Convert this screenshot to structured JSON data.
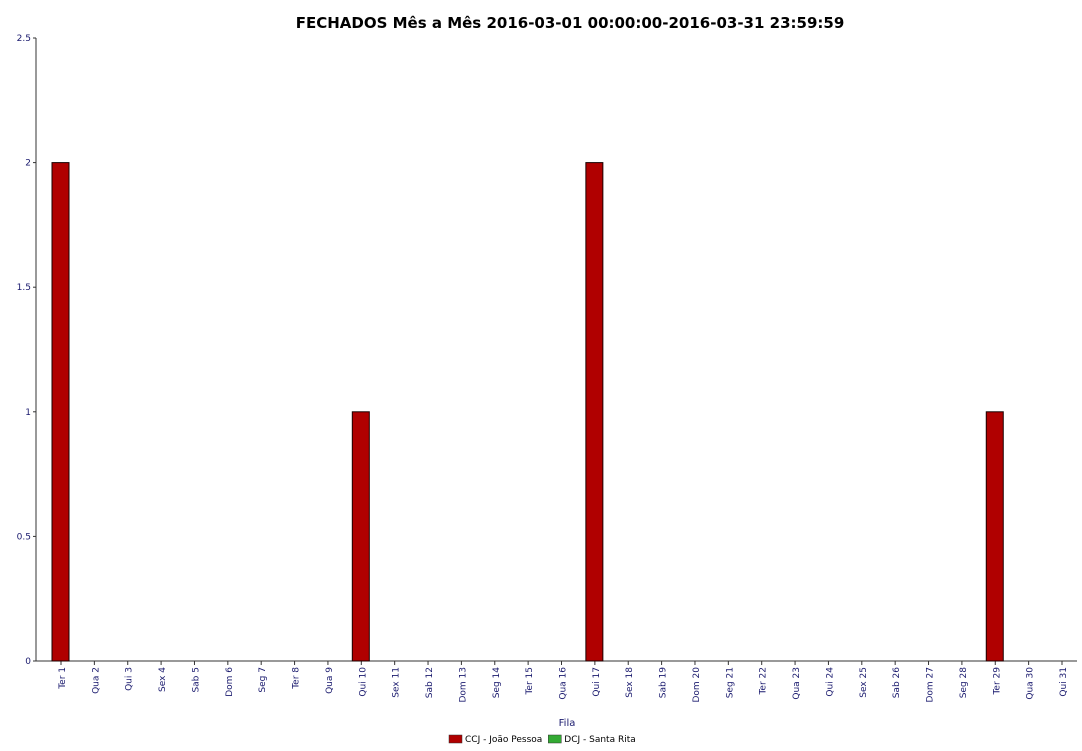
{
  "chart_data": {
    "type": "bar",
    "title": "FECHADOS Mês a Mês 2016-03-01 00:00:00-2016-03-31 23:59:59",
    "xlabel": "Fila",
    "ylabel": "",
    "ylim": [
      0,
      2.5
    ],
    "yticks": [
      "0",
      "0.5",
      "1",
      "1.5",
      "2",
      "2.5"
    ],
    "grid": false,
    "legend_position": "bottom-center",
    "categories": [
      "Ter 1",
      "Qua 2",
      "Qui 3",
      "Sex 4",
      "Sab 5",
      "Dom 6",
      "Seg 7",
      "Ter 8",
      "Qua 9",
      "Qui 10",
      "Sex 11",
      "Sab 12",
      "Dom 13",
      "Seg 14",
      "Ter 15",
      "Qua 16",
      "Qui 17",
      "Sex 18",
      "Sab 19",
      "Dom 20",
      "Seg 21",
      "Ter 22",
      "Qua 23",
      "Qui 24",
      "Sex 25",
      "Sab 26",
      "Dom 27",
      "Seg 28",
      "Ter 29",
      "Qua 30",
      "Qui 31"
    ],
    "series": [
      {
        "name": "CCJ - João Pessoa",
        "color": "#b00000",
        "values": [
          2,
          0,
          0,
          0,
          0,
          0,
          0,
          0,
          0,
          1,
          0,
          0,
          0,
          0,
          0,
          0,
          2,
          0,
          0,
          0,
          0,
          0,
          0,
          0,
          0,
          0,
          0,
          0,
          1,
          0,
          0
        ]
      },
      {
        "name": "DCJ - Santa Rita",
        "color": "#33aa33",
        "values": [
          0,
          0,
          0,
          0,
          0,
          0,
          0,
          0,
          0,
          0,
          0,
          0,
          0,
          0,
          0,
          0,
          0,
          0,
          0,
          0,
          0,
          0,
          0,
          0,
          0,
          0,
          0,
          0,
          0,
          0,
          0
        ]
      }
    ]
  }
}
